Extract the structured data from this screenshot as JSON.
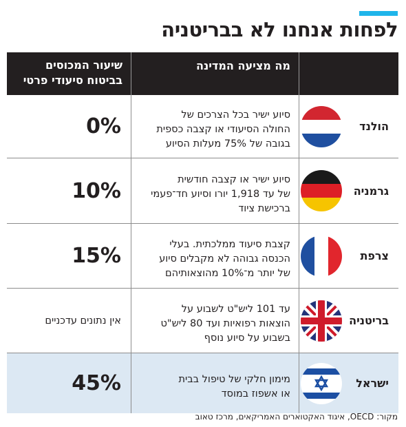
{
  "title": "לפחות אנחנו לא בבריטניה",
  "accent_color": "#1fb5ea",
  "header": {
    "offer": "מה מציעה המדינה",
    "rate_line1": "שיעור המכוסים",
    "rate_line2": "בביטוח סיעודי פרטי"
  },
  "rows": [
    {
      "country": "הולנד",
      "flag": "netherlands-flag-icon",
      "offer_lines": [
        "סיוע ישיר בכל הצרכים של",
        "החולה הסיעודי או קצבה כספית",
        "בגובה של 75% מעלות הסיוע"
      ],
      "rate": "0%"
    },
    {
      "country": "גרמניה",
      "flag": "germany-flag-icon",
      "offer_lines": [
        "סיוע ישיר או קצבה חודשית",
        "של עד 1,918 יורו וסיוע חד־פעמי",
        "ברכישת ציוד"
      ],
      "rate": "10%"
    },
    {
      "country": "צרפת",
      "flag": "france-flag-icon",
      "offer_lines": [
        "קצבת סיעוד ממלכתית. בעלי",
        "הכנסה גבוהה לא מקבלים סיוע",
        "של יותר מ־10% מהוצאותיהם"
      ],
      "rate": "15%"
    },
    {
      "country": "בריטניה",
      "flag": "uk-flag-icon",
      "offer_lines": [
        "עד 101 ליש\"ט לשבוע על",
        "הוצאות רפואיות ועד 80 ליש\"ט",
        "בשבוע על סיוע נוסף"
      ],
      "rate": "אין נתונים עדכניים"
    },
    {
      "country": "ישראל",
      "flag": "israel-flag-icon",
      "offer_lines": [
        "מימון חלקי של טיפול בבית",
        "או אשפוז במוסד"
      ],
      "rate": "45%"
    }
  ],
  "source": "מקור: OECD, איגוד האקטוארים האמריקאים, מרכז טאוב"
}
